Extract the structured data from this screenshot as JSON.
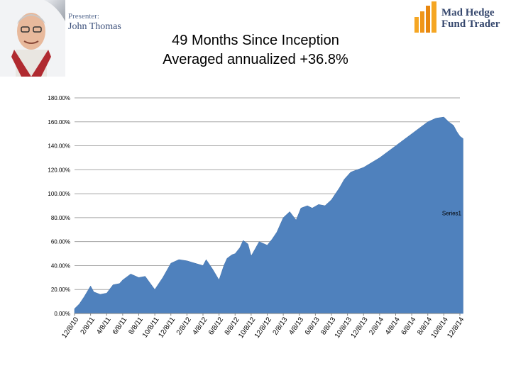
{
  "presenter": {
    "label": "Presenter:",
    "name": "John Thomas"
  },
  "brand": {
    "line1": "Mad Hedge",
    "line2": "Fund Trader",
    "color": "#35476d",
    "accent": "#f5a623"
  },
  "chart_data": {
    "type": "area",
    "title": "49 Months Since Inception",
    "subtitle": "Averaged annualized +36.8%",
    "xlabel": "",
    "ylabel": "",
    "ylim": [
      0,
      180
    ],
    "y_ticks": [
      0,
      20,
      40,
      60,
      80,
      100,
      120,
      140,
      160,
      180
    ],
    "y_tick_labels": [
      "0.00%",
      "20.00%",
      "40.00%",
      "60.00%",
      "80.00%",
      "100.00%",
      "120.00%",
      "140.00%",
      "160.00%",
      "180.00%"
    ],
    "x_tick_labels": [
      "12/8/10",
      "2/8/11",
      "4/8/11",
      "6/8/11",
      "8/8/11",
      "10/8/11",
      "12/8/11",
      "2/8/12",
      "4/8/12",
      "6/8/12",
      "8/8/12",
      "10/8/12",
      "12/8/12",
      "2/8/13",
      "4/8/13",
      "6/8/13",
      "8/8/13",
      "10/8/13",
      "12/8/13",
      "2/8/14",
      "4/8/14",
      "6/8/14",
      "8/8/14",
      "10/8/14",
      "12/8/14"
    ],
    "grid": true,
    "legend": "right",
    "series": [
      {
        "name": "Series1",
        "color": "#4f81bd",
        "x": [
          0,
          0.3,
          0.6,
          1.0,
          1.2,
          1.6,
          2.0,
          2.4,
          2.8,
          3.0,
          3.5,
          4.0,
          4.4,
          5.0,
          5.5,
          6.0,
          6.5,
          7.0,
          7.5,
          8.0,
          8.2,
          8.6,
          9.0,
          9.3,
          9.5,
          9.8,
          10.0,
          10.3,
          10.5,
          10.8,
          11.0,
          11.5,
          12.0,
          12.3,
          12.6,
          13.0,
          13.4,
          13.8,
          14.1,
          14.5,
          14.8,
          15.2,
          15.6,
          16.0,
          16.5,
          16.8,
          17.2,
          17.6,
          18.0,
          18.5,
          19.0,
          19.5,
          20.0,
          20.5,
          21.0,
          21.5,
          22.0,
          22.5,
          23.0,
          23.3,
          23.6,
          23.8,
          24.0,
          24.2
        ],
        "values": [
          4,
          8,
          14,
          23,
          18,
          16,
          17,
          24,
          25,
          28,
          33,
          30,
          31,
          20,
          30,
          42,
          45,
          44,
          42,
          40,
          45,
          37,
          28,
          40,
          46,
          49,
          50,
          55,
          61,
          58,
          48,
          60,
          57,
          62,
          68,
          80,
          85,
          78,
          88,
          90,
          88,
          91,
          90,
          95,
          105,
          112,
          118,
          120,
          122,
          126,
          130,
          135,
          140,
          145,
          150,
          155,
          160,
          163,
          164,
          160,
          157,
          152,
          148,
          146
        ]
      }
    ]
  }
}
